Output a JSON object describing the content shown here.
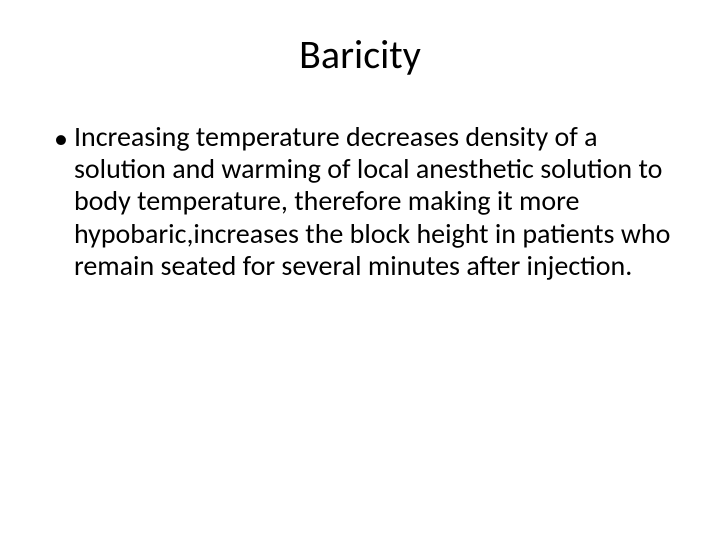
{
  "slide": {
    "title": "Baricity",
    "bullets": [
      {
        "marker": "•",
        "text": " Increasing temperature decreases density of a solution and warming of local anesthetic solution to body temperature, therefore making it more hypobaric,increases the block height in patients who remain seated for several minutes after injection."
      }
    ]
  },
  "style": {
    "background_color": "#ffffff",
    "text_color": "#000000",
    "title_fontsize": 40,
    "body_fontsize": 28,
    "font_family": "Calibri"
  }
}
